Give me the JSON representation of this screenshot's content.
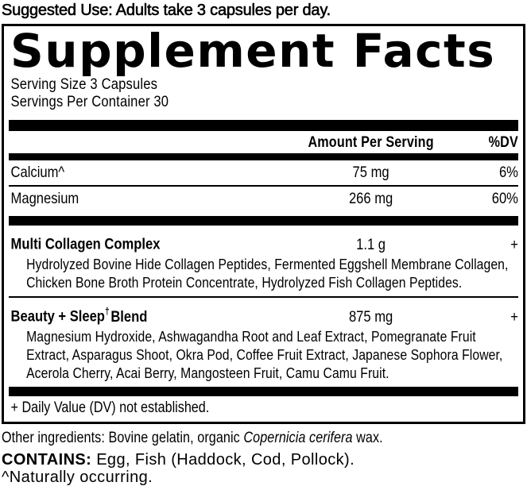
{
  "colors": {
    "text": "#000000",
    "background": "#ffffff"
  },
  "suggested_use": "Suggested Use: Adults take 3 capsules per day.",
  "panel": {
    "title": "Supplement Facts",
    "serving_size": "Serving Size 3 Capsules",
    "servings_per_container": "Servings Per Container 30",
    "header": {
      "amount": "Amount Per Serving",
      "dv": "%DV"
    },
    "rows": [
      {
        "name": "Calcium^",
        "amount": "75 mg",
        "dv": "6%"
      },
      {
        "name": "Magnesium",
        "amount": "266 mg",
        "dv": "60%"
      }
    ],
    "blends": [
      {
        "name": "Multi Collagen Complex",
        "name_sup": "",
        "name_rest": "",
        "amount": "1.1 g",
        "dv": "+",
        "ingredients": "Hydrolyzed Bovine Hide Collagen Peptides, Fermented Eggshell Membrane Collagen, Chicken Bone Broth Protein Concentrate, Hydrolyzed Fish Collagen Peptides."
      },
      {
        "name": "Beauty + Sleep",
        "name_sup": "†",
        "name_rest": "Blend",
        "amount": "875 mg",
        "dv": "+",
        "ingredients": "Magnesium Hydroxide, Ashwagandha Root and Leaf Extract, Pomegranate Fruit Extract, Asparagus Shoot, Okra Pod, Coffee Fruit Extract, Japanese Sophora Flower, Acerola Cherry, Acai Berry, Mangosteen Fruit, Camu Camu Fruit."
      }
    ],
    "footnote": "+ Daily Value (DV) not established."
  },
  "other_ingredients": {
    "prefix": "Other ingredients: Bovine gelatin, organic ",
    "italic": "Copernicia cerifera",
    "suffix": " wax."
  },
  "contains": {
    "label": "CONTAINS:",
    "text": " Egg, Fish (Haddock, Cod, Pollock)."
  },
  "naturally": "^Naturally occurring."
}
